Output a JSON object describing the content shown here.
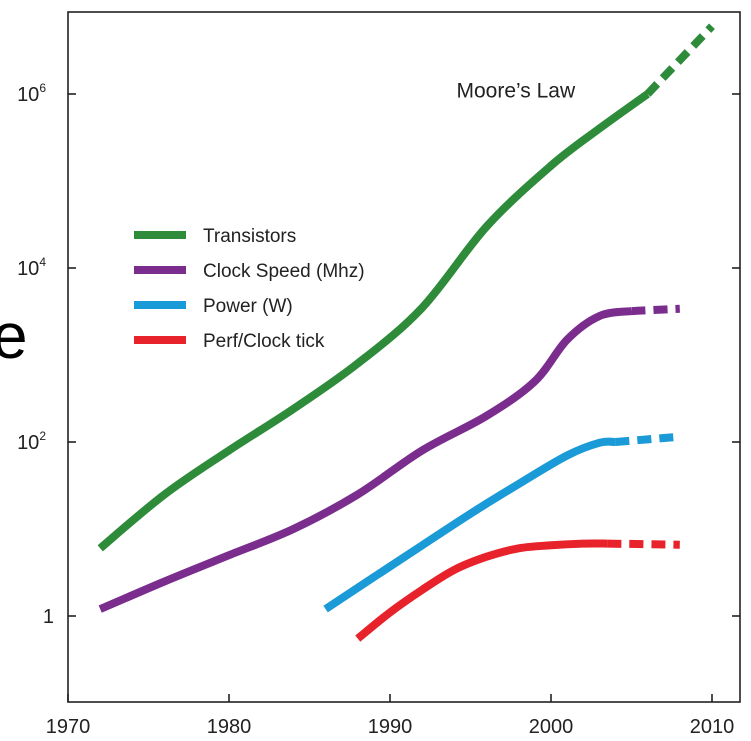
{
  "edge_glyph": "e",
  "chart_data": {
    "type": "line",
    "title": "",
    "xlabel": "",
    "ylabel": "",
    "xlim": [
      1970,
      2012
    ],
    "ylim": [
      0.2,
      30000000
    ],
    "y_scale": "log",
    "grid": false,
    "legend_position": "upper-left",
    "x_ticks": [
      1970,
      1980,
      1990,
      2000,
      2010
    ],
    "x_tick_labels": [
      "1970",
      "1980",
      "1990",
      "2000",
      "2010"
    ],
    "y_ticks": [
      {
        "value": 1,
        "base": "1",
        "exp": ""
      },
      {
        "value": 100,
        "base": "10",
        "exp": "2"
      },
      {
        "value": 10000,
        "base": "10",
        "exp": "4"
      },
      {
        "value": 1000000,
        "base": "10",
        "exp": "6"
      }
    ],
    "annotation": {
      "text": "Moore’s Law",
      "x": 2001.5,
      "y": 1100000
    },
    "series": [
      {
        "name": "Transistors",
        "color": "#2e8b3a",
        "solid": [
          [
            1972,
            6
          ],
          [
            1976,
            25
          ],
          [
            1980,
            80
          ],
          [
            1984,
            240
          ],
          [
            1988,
            800
          ],
          [
            1992,
            3500
          ],
          [
            1996,
            30000
          ],
          [
            2000,
            150000
          ],
          [
            2003,
            400000
          ],
          [
            2006,
            1000000
          ]
        ],
        "dashed": [
          [
            2006,
            1000000
          ],
          [
            2010,
            6000000
          ]
        ]
      },
      {
        "name": "Clock Speed (Mhz)",
        "color": "#7b2d8e",
        "solid": [
          [
            1972,
            1.2
          ],
          [
            1976,
            2.5
          ],
          [
            1980,
            5
          ],
          [
            1984,
            10
          ],
          [
            1988,
            25
          ],
          [
            1992,
            80
          ],
          [
            1996,
            200
          ],
          [
            1999,
            500
          ],
          [
            2001,
            1500
          ],
          [
            2003,
            2800
          ],
          [
            2005,
            3200
          ]
        ],
        "dashed": [
          [
            2005,
            3200
          ],
          [
            2008,
            3400
          ]
        ]
      },
      {
        "name": "Power (W)",
        "color": "#1a9ad6",
        "solid": [
          [
            1986,
            1.2
          ],
          [
            1989,
            2.8
          ],
          [
            1992,
            6.5
          ],
          [
            1995,
            15
          ],
          [
            1998,
            33
          ],
          [
            2001,
            70
          ],
          [
            2003,
            98
          ],
          [
            2004,
            100
          ]
        ],
        "dashed": [
          [
            2004,
            100
          ],
          [
            2008,
            115
          ]
        ]
      },
      {
        "name": "Perf/Clock tick",
        "color": "#e8222a",
        "solid": [
          [
            1988,
            0.55
          ],
          [
            1990,
            1.1
          ],
          [
            1992,
            2.0
          ],
          [
            1994,
            3.4
          ],
          [
            1996,
            4.8
          ],
          [
            1998,
            6.0
          ],
          [
            2000,
            6.5
          ],
          [
            2002,
            6.8
          ],
          [
            2003.5,
            6.8
          ]
        ],
        "dashed": [
          [
            2003.5,
            6.8
          ],
          [
            2008,
            6.6
          ]
        ]
      }
    ]
  }
}
